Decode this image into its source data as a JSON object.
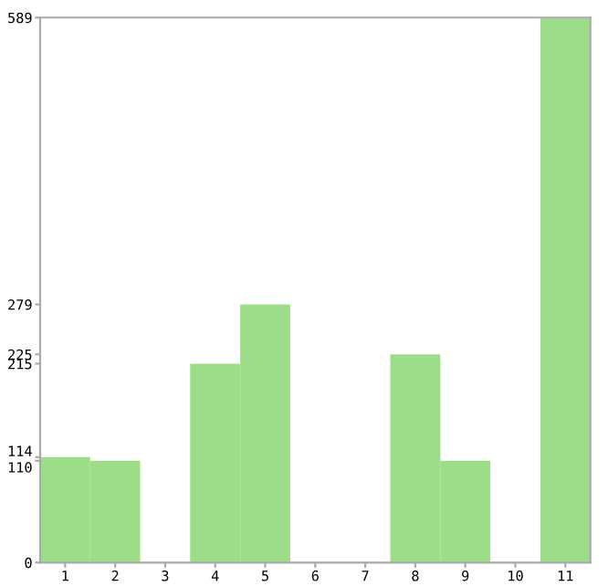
{
  "chart_data": {
    "type": "bar",
    "categories": [
      "1",
      "2",
      "3",
      "4",
      "5",
      "6",
      "7",
      "8",
      "9",
      "10",
      "11"
    ],
    "values": [
      114,
      110,
      0,
      215,
      279,
      0,
      0,
      225,
      110,
      0,
      589
    ],
    "color": "#9edd88",
    "ylim": [
      0,
      589
    ],
    "yticks": [
      0,
      110,
      114,
      215,
      225,
      279,
      589
    ],
    "grid": false
  }
}
